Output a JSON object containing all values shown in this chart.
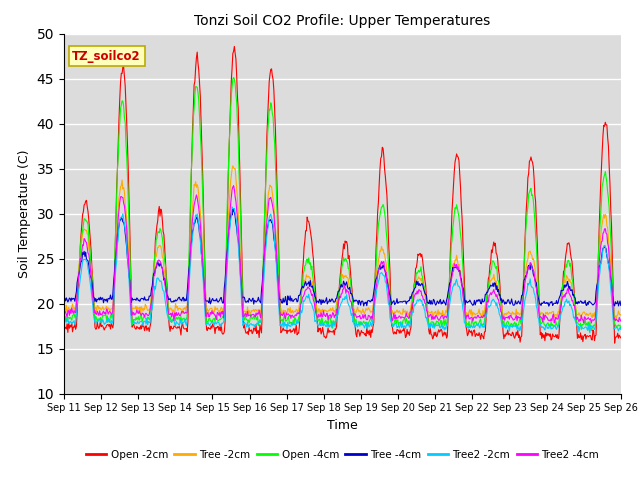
{
  "title": "Tonzi Soil CO2 Profile: Upper Temperatures",
  "xlabel": "Time",
  "ylabel": "Soil Temperature (C)",
  "ylim": [
    10,
    50
  ],
  "yticks": [
    10,
    15,
    20,
    25,
    30,
    35,
    40,
    45,
    50
  ],
  "background_color": "#dcdcdc",
  "annotation_text": "TZ_soilco2",
  "annotation_box_color": "#ffffbb",
  "annotation_box_edge": "#bbaa00",
  "series": [
    {
      "label": "Open -2cm",
      "color": "#ff0000"
    },
    {
      "label": "Tree -2cm",
      "color": "#ffaa00"
    },
    {
      "label": "Open -4cm",
      "color": "#00ff00"
    },
    {
      "label": "Tree -4cm",
      "color": "#0000cc"
    },
    {
      "label": "Tree2 -2cm",
      "color": "#00ccff"
    },
    {
      "label": "Tree2 -4cm",
      "color": "#ff00ff"
    }
  ],
  "n_days": 15,
  "points_per_day": 48,
  "start_day": 11
}
